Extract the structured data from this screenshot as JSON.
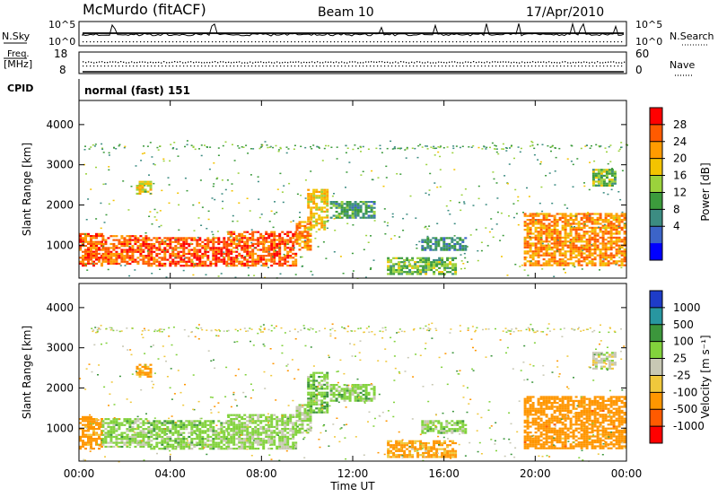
{
  "header": {
    "station": "McMurdo (fitACF)",
    "beam": "Beam 10",
    "date": "17/Apr/2010"
  },
  "noise_panel": {
    "left_label": "N.Sky",
    "right_label": "N.Search",
    "left_ticks": [
      "10^5",
      "10^0"
    ],
    "right_ticks": [
      "10^5",
      "10^0"
    ]
  },
  "freq_panel": {
    "left_label_line1": "Freq.",
    "left_label_line2": "[MHz]",
    "right_label": "Nave",
    "left_ticks": [
      "18",
      "8"
    ],
    "right_ticks": [
      "60",
      "0"
    ]
  },
  "cpid_panel": {
    "label": "CPID",
    "value": "normal (fast) 151"
  },
  "chart_data": [
    {
      "type": "heatmap",
      "name": "power",
      "xlabel": "",
      "ylabel": "Slant Range [km]",
      "x_ticks": [
        "00:00",
        "04:00",
        "08:00",
        "12:00",
        "16:00",
        "20:00",
        "00:00"
      ],
      "xlim": [
        0,
        24
      ],
      "ylim": [
        180,
        4600
      ],
      "y_ticks": [
        1000,
        2000,
        3000,
        4000
      ],
      "colorbar": {
        "label": "Power [dB]",
        "ticks": [
          "28",
          "24",
          "20",
          "16",
          "12",
          "8",
          "4"
        ],
        "colors": [
          "#ff0000",
          "#ff5a00",
          "#ff9b00",
          "#f3c300",
          "#9bd23c",
          "#3c9b3c",
          "#3c8c82",
          "#3c64c8",
          "#0000ff"
        ]
      },
      "regions": [
        {
          "t": [
            0.0,
            1.0
          ],
          "r": [
            500,
            1300
          ],
          "v": 26
        },
        {
          "t": [
            1.0,
            3.0
          ],
          "r": [
            550,
            1250
          ],
          "v": 25
        },
        {
          "t": [
            3.0,
            6.5
          ],
          "r": [
            500,
            1200
          ],
          "v": 27
        },
        {
          "t": [
            6.5,
            9.5
          ],
          "r": [
            500,
            1350
          ],
          "v": 26
        },
        {
          "t": [
            9.5,
            10.2
          ],
          "r": [
            900,
            1600
          ],
          "v": 22
        },
        {
          "t": [
            10.0,
            10.9
          ],
          "r": [
            1400,
            2400
          ],
          "v": 18
        },
        {
          "t": [
            11.0,
            13.0
          ],
          "r": [
            1700,
            2100
          ],
          "v": 8
        },
        {
          "t": [
            13.5,
            16.5
          ],
          "r": [
            300,
            700
          ],
          "v": 12
        },
        {
          "t": [
            15.0,
            17.0
          ],
          "r": [
            900,
            1200
          ],
          "v": 7
        },
        {
          "t": [
            19.5,
            23.9
          ],
          "r": [
            500,
            1800
          ],
          "v": 23
        },
        {
          "t": [
            2.5,
            3.2
          ],
          "r": [
            2300,
            2600
          ],
          "v": 16
        },
        {
          "t": [
            22.5,
            23.5
          ],
          "r": [
            2500,
            2900
          ],
          "v": 12
        }
      ]
    },
    {
      "type": "heatmap",
      "name": "velocity",
      "xlabel": "Time UT",
      "ylabel": "Slant Range [km]",
      "x_ticks": [
        "00:00",
        "04:00",
        "08:00",
        "12:00",
        "16:00",
        "20:00",
        "00:00"
      ],
      "xlim": [
        0,
        24
      ],
      "ylim": [
        180,
        4600
      ],
      "y_ticks": [
        1000,
        2000,
        3000,
        4000
      ],
      "colorbar": {
        "label": "Velocity [m s⁻¹]",
        "ticks": [
          "1000",
          "500",
          "100",
          "25",
          "-25",
          "-100",
          "-500",
          "-1000"
        ],
        "colors": [
          "#1e3cc8",
          "#2896a0",
          "#3c963c",
          "#82d23c",
          "#c8c8b4",
          "#f0c83c",
          "#ff9600",
          "#ff5a00",
          "#ff0000"
        ]
      },
      "regions": [
        {
          "t": [
            0.0,
            1.0
          ],
          "r": [
            500,
            1300
          ],
          "v": -200
        },
        {
          "t": [
            1.0,
            3.0
          ],
          "r": [
            550,
            1250
          ],
          "v": 50
        },
        {
          "t": [
            3.0,
            6.5
          ],
          "r": [
            500,
            1200
          ],
          "v": 60
        },
        {
          "t": [
            6.5,
            9.5
          ],
          "r": [
            500,
            1350
          ],
          "v": 40
        },
        {
          "t": [
            9.5,
            10.2
          ],
          "r": [
            900,
            1600
          ],
          "v": 30
        },
        {
          "t": [
            10.0,
            10.9
          ],
          "r": [
            1400,
            2400
          ],
          "v": 80
        },
        {
          "t": [
            11.0,
            13.0
          ],
          "r": [
            1700,
            2100
          ],
          "v": 60
        },
        {
          "t": [
            13.5,
            16.5
          ],
          "r": [
            300,
            700
          ],
          "v": -150
        },
        {
          "t": [
            15.0,
            17.0
          ],
          "r": [
            900,
            1200
          ],
          "v": 50
        },
        {
          "t": [
            19.5,
            23.9
          ],
          "r": [
            500,
            1800
          ],
          "v": -300
        },
        {
          "t": [
            2.5,
            3.2
          ],
          "r": [
            2300,
            2600
          ],
          "v": -150
        },
        {
          "t": [
            22.5,
            23.5
          ],
          "r": [
            2500,
            2900
          ],
          "v": 0
        }
      ]
    }
  ]
}
